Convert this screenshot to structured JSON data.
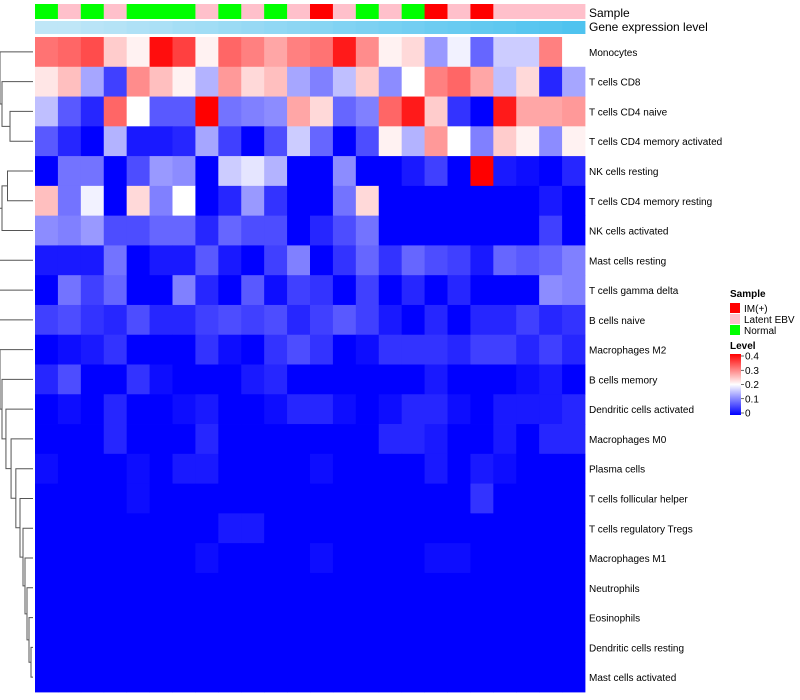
{
  "chart_data": {
    "type": "heatmap",
    "title": "",
    "annotations": [
      {
        "name": "Sample",
        "values": [
          "Normal",
          "Latent EBV",
          "Normal",
          "Latent EBV",
          "Normal",
          "Normal",
          "Normal",
          "Latent EBV",
          "Normal",
          "Latent EBV",
          "Normal",
          "Latent EBV",
          "IM(+)",
          "Latent EBV",
          "Normal",
          "Latent EBV",
          "Normal",
          "IM(+)",
          "Latent EBV",
          "IM(+)",
          "Latent EBV",
          "Latent EBV",
          "Latent EBV",
          "Latent EBV"
        ]
      },
      {
        "name": "Gene expression level",
        "values": [
          0.0,
          0.0,
          0.05,
          0.09,
          0.14,
          0.18,
          0.23,
          0.27,
          0.32,
          0.36,
          0.41,
          0.45,
          0.5,
          0.55,
          0.59,
          0.64,
          0.68,
          0.73,
          0.77,
          0.82,
          0.86,
          0.91,
          0.95,
          1.0
        ]
      }
    ],
    "rows": [
      "Monocytes",
      "T cells CD8",
      "T cells CD4 naive",
      "T cells CD4 memory activated",
      "NK cells resting",
      "T cells CD4 memory resting",
      "NK cells activated",
      "Mast cells resting",
      "T cells gamma delta",
      "B cells naive",
      "Macrophages M2",
      "B cells memory",
      "Dendritic cells activated",
      "Macrophages M0",
      "Plasma cells",
      "T cells follicular helper",
      "T cells regulatory  Tregs",
      "Macrophages M1",
      "Neutrophils",
      "Eosinophils",
      "Dendritic cells resting",
      "Mast cells activated"
    ],
    "values": [
      [
        0.31,
        0.32,
        0.34,
        0.24,
        0.21,
        0.39,
        0.35,
        0.21,
        0.32,
        0.3,
        0.27,
        0.3,
        0.31,
        0.38,
        0.29,
        0.21,
        0.23,
        0.12,
        0.19,
        0.08,
        0.16,
        0.16,
        0.3,
        0.2
      ],
      [
        0.22,
        0.25,
        0.13,
        0.05,
        0.29,
        0.25,
        0.21,
        0.14,
        0.28,
        0.23,
        0.25,
        0.13,
        0.1,
        0.15,
        0.24,
        0.11,
        0.2,
        0.3,
        0.32,
        0.27,
        0.15,
        0.23,
        0.03,
        0.13
      ],
      [
        0.15,
        0.07,
        0.03,
        0.32,
        0.2,
        0.07,
        0.07,
        0.4,
        0.09,
        0.1,
        0.11,
        0.27,
        0.23,
        0.08,
        0.1,
        0.32,
        0.38,
        0.24,
        0.04,
        0.0,
        0.38,
        0.27,
        0.27,
        0.28
      ],
      [
        0.07,
        0.03,
        0.0,
        0.14,
        0.02,
        0.02,
        0.03,
        0.13,
        0.05,
        0.0,
        0.06,
        0.16,
        0.08,
        0.0,
        0.06,
        0.21,
        0.14,
        0.28,
        0.2,
        0.1,
        0.24,
        0.21,
        0.11,
        0.21
      ],
      [
        0.0,
        0.09,
        0.09,
        0.0,
        0.06,
        0.12,
        0.11,
        0.0,
        0.16,
        0.18,
        0.14,
        0.0,
        0.0,
        0.11,
        0.0,
        0.0,
        0.02,
        0.05,
        0.0,
        0.4,
        0.02,
        0.01,
        0.0,
        0.03
      ],
      [
        0.25,
        0.09,
        0.19,
        0.0,
        0.23,
        0.1,
        0.2,
        0.0,
        0.03,
        0.12,
        0.04,
        0.0,
        0.0,
        0.09,
        0.23,
        0.0,
        0.0,
        0.0,
        0.0,
        0.0,
        0.0,
        0.0,
        0.02,
        0.0
      ],
      [
        0.11,
        0.1,
        0.12,
        0.06,
        0.06,
        0.08,
        0.08,
        0.03,
        0.08,
        0.06,
        0.06,
        0.0,
        0.03,
        0.06,
        0.09,
        0.0,
        0.0,
        0.0,
        0.0,
        0.0,
        0.0,
        0.0,
        0.05,
        0.0
      ],
      [
        0.02,
        0.02,
        0.02,
        0.09,
        0.0,
        0.02,
        0.02,
        0.07,
        0.02,
        0.0,
        0.05,
        0.1,
        0.0,
        0.04,
        0.08,
        0.04,
        0.08,
        0.06,
        0.05,
        0.02,
        0.08,
        0.07,
        0.08,
        0.1
      ],
      [
        0.0,
        0.09,
        0.05,
        0.08,
        0.0,
        0.0,
        0.1,
        0.03,
        0.0,
        0.07,
        0.01,
        0.05,
        0.04,
        0.0,
        0.05,
        0.0,
        0.03,
        0.0,
        0.03,
        0.0,
        0.0,
        0.0,
        0.11,
        0.1
      ],
      [
        0.05,
        0.06,
        0.04,
        0.03,
        0.06,
        0.03,
        0.03,
        0.05,
        0.06,
        0.05,
        0.06,
        0.03,
        0.05,
        0.07,
        0.05,
        0.02,
        0.0,
        0.03,
        0.0,
        0.03,
        0.03,
        0.05,
        0.03,
        0.04
      ],
      [
        0.0,
        0.01,
        0.02,
        0.04,
        0.0,
        0.0,
        0.0,
        0.04,
        0.01,
        0.0,
        0.04,
        0.06,
        0.04,
        0.0,
        0.01,
        0.04,
        0.04,
        0.04,
        0.03,
        0.05,
        0.05,
        0.03,
        0.05,
        0.03
      ],
      [
        0.03,
        0.06,
        0.0,
        0.0,
        0.04,
        0.01,
        0.0,
        0.0,
        0.0,
        0.02,
        0.03,
        0.0,
        0.0,
        0.0,
        0.0,
        0.0,
        0.0,
        0.02,
        0.0,
        0.0,
        0.0,
        0.01,
        0.02,
        0.0
      ],
      [
        0.0,
        0.01,
        0.0,
        0.03,
        0.0,
        0.0,
        0.01,
        0.02,
        0.0,
        0.0,
        0.01,
        0.03,
        0.03,
        0.01,
        0.0,
        0.01,
        0.03,
        0.03,
        0.01,
        0.0,
        0.02,
        0.02,
        0.02,
        0.03
      ],
      [
        0.0,
        0.0,
        0.0,
        0.03,
        0.0,
        0.0,
        0.0,
        0.03,
        0.0,
        0.0,
        0.0,
        0.0,
        0.0,
        0.0,
        0.0,
        0.03,
        0.03,
        0.02,
        0.0,
        0.0,
        0.02,
        0.0,
        0.03,
        0.03
      ],
      [
        0.01,
        0.0,
        0.0,
        0.0,
        0.01,
        0.0,
        0.02,
        0.02,
        0.0,
        0.0,
        0.0,
        0.0,
        0.01,
        0.0,
        0.0,
        0.0,
        0.0,
        0.02,
        0.0,
        0.02,
        0.01,
        0.0,
        0.0,
        0.0
      ],
      [
        0.0,
        0.0,
        0.0,
        0.0,
        0.01,
        0.0,
        0.0,
        0.0,
        0.0,
        0.0,
        0.0,
        0.0,
        0.0,
        0.0,
        0.0,
        0.0,
        0.0,
        0.0,
        0.0,
        0.04,
        0.0,
        0.0,
        0.0,
        0.0
      ],
      [
        0.0,
        0.0,
        0.0,
        0.0,
        0.0,
        0.0,
        0.0,
        0.0,
        0.02,
        0.02,
        0.0,
        0.0,
        0.0,
        0.0,
        0.0,
        0.0,
        0.0,
        0.0,
        0.0,
        0.0,
        0.0,
        0.0,
        0.0,
        0.0
      ],
      [
        0.0,
        0.0,
        0.0,
        0.0,
        0.0,
        0.0,
        0.0,
        0.01,
        0.0,
        0.0,
        0.0,
        0.0,
        0.01,
        0.0,
        0.0,
        0.0,
        0.0,
        0.01,
        0.01,
        0.0,
        0.0,
        0.0,
        0.0,
        0.0
      ],
      [
        0.0,
        0.0,
        0.0,
        0.0,
        0.0,
        0.0,
        0.0,
        0.0,
        0.0,
        0.0,
        0.0,
        0.0,
        0.0,
        0.0,
        0.0,
        0.0,
        0.0,
        0.0,
        0.0,
        0.0,
        0.0,
        0.0,
        0.0,
        0.0
      ],
      [
        0.0,
        0.0,
        0.0,
        0.0,
        0.0,
        0.0,
        0.0,
        0.0,
        0.0,
        0.0,
        0.0,
        0.0,
        0.0,
        0.0,
        0.0,
        0.0,
        0.0,
        0.0,
        0.0,
        0.0,
        0.0,
        0.0,
        0.0,
        0.0
      ],
      [
        0.0,
        0.0,
        0.0,
        0.0,
        0.0,
        0.0,
        0.0,
        0.0,
        0.0,
        0.0,
        0.0,
        0.0,
        0.0,
        0.0,
        0.0,
        0.0,
        0.0,
        0.0,
        0.0,
        0.0,
        0.0,
        0.0,
        0.0,
        0.0
      ],
      [
        0.0,
        0.0,
        0.0,
        0.0,
        0.0,
        0.0,
        0.0,
        0.0,
        0.0,
        0.0,
        0.0,
        0.0,
        0.0,
        0.0,
        0.0,
        0.0,
        0.0,
        0.0,
        0.0,
        0.0,
        0.0,
        0.0,
        0.0,
        0.0
      ]
    ],
    "color_scale": {
      "range": [
        0,
        0.4
      ],
      "low": "#0000ff",
      "mid": "#ffffff",
      "mid_value": 0.2,
      "high": "#ff0000"
    },
    "legend": {
      "sample": {
        "title": "Sample",
        "items": [
          {
            "label": "IM(+)",
            "color": "#ff0000"
          },
          {
            "label": "Latent EBV",
            "color": "#ffc0cb"
          },
          {
            "label": "Normal",
            "color": "#00ff00"
          }
        ]
      },
      "level": {
        "title": "Level",
        "ticks": [
          "0.4",
          "0.3",
          "0.2",
          "0.1",
          "0"
        ],
        "tick_values": [
          0.4,
          0.3,
          0.2,
          0.1,
          0
        ]
      }
    },
    "gene_expression_colors": {
      "low": "#bfe6f7",
      "high": "#4fc3ef"
    }
  }
}
